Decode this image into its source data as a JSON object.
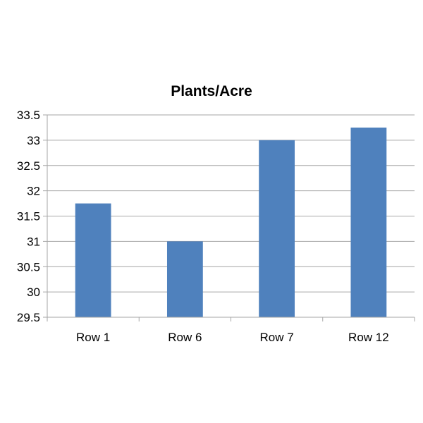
{
  "chart_data": {
    "type": "bar",
    "title": "Plants/Acre",
    "xlabel": "",
    "ylabel": "",
    "categories": [
      "Row 1",
      "Row 6",
      "Row 7",
      "Row 12"
    ],
    "values": [
      31.75,
      31.0,
      33.0,
      33.25
    ],
    "ylim": [
      29.5,
      33.5
    ],
    "yticks": [
      "29.5",
      "30",
      "30.5",
      "31",
      "31.5",
      "32",
      "32.5",
      "33",
      "33.5"
    ],
    "grid": true,
    "legend": "none",
    "bar_color": "#4f81bd"
  }
}
